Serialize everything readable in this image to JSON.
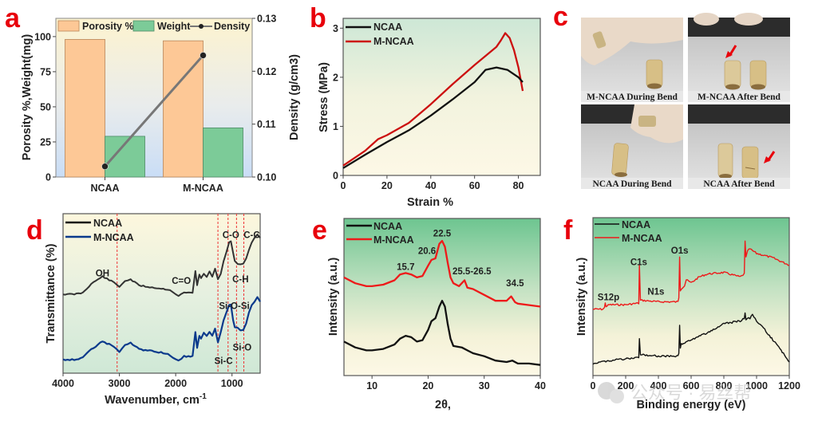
{
  "figure": {
    "panel_letters": [
      "a",
      "b",
      "c",
      "d",
      "e",
      "f"
    ],
    "colors": {
      "porosity": "#fdc896",
      "weight": "#7ccb98",
      "density_line": "#777777",
      "ncaa": "#111111",
      "m_ncaa_b": "#cc1010",
      "m_ncaa_d": "#0b3a8c",
      "m_ncaa_ef": "#ee1a1a",
      "guide": "#ee3333",
      "letter": "#e8000b"
    },
    "watermark": "公众号 · 易丝帮"
  },
  "chart_data": [
    {
      "panel": "a",
      "type": "bar",
      "categories": [
        "NCAA",
        "M-NCAA"
      ],
      "series": [
        {
          "name": "Porosity %",
          "axis": "left",
          "values": [
            98,
            97
          ]
        },
        {
          "name": "Weight",
          "axis": "left",
          "values": [
            29,
            35
          ]
        },
        {
          "name": "Density",
          "axis": "right",
          "kind": "line",
          "values": [
            0.102,
            0.123
          ]
        }
      ],
      "ylabel": "Porosity %,Weight(mg)",
      "ylabel_right": "Density (g/cm3)",
      "ylim": [
        0,
        113
      ],
      "yticks": [
        "0",
        "25",
        "50",
        "75",
        "100"
      ],
      "ytick_values": [
        0,
        25,
        50,
        75,
        100
      ],
      "ylim_right": [
        0.1,
        0.13
      ],
      "yticks_right": [
        "0.10",
        "0.11",
        "0.12",
        "0.13"
      ],
      "ytick_values_right": [
        0.1,
        0.11,
        0.12,
        0.13
      ],
      "legend": [
        "Porosity %",
        "Weight",
        "Density"
      ],
      "legend_position": "top"
    },
    {
      "panel": "b",
      "type": "line",
      "xlabel": "Strain %",
      "ylabel": "Stress (MPa)",
      "xlim": [
        0,
        90
      ],
      "ylim": [
        0,
        3.2
      ],
      "xticks": [
        "0",
        "20",
        "40",
        "60",
        "80"
      ],
      "xtick_values": [
        0,
        20,
        40,
        60,
        80
      ],
      "yticks": [
        "0",
        "1",
        "2",
        "3"
      ],
      "ytick_values": [
        0,
        1,
        2,
        3
      ],
      "legend_position": "top-left",
      "series": [
        {
          "name": "NCAA",
          "x": [
            0,
            10,
            20,
            30,
            40,
            50,
            60,
            65,
            70,
            75,
            80,
            82
          ],
          "y": [
            0.15,
            0.42,
            0.68,
            0.92,
            1.22,
            1.55,
            1.9,
            2.15,
            2.2,
            2.15,
            2.0,
            1.9
          ]
        },
        {
          "name": "M-NCAA",
          "x": [
            0,
            10,
            16,
            20,
            30,
            40,
            50,
            60,
            70,
            72,
            74,
            76,
            78,
            80,
            82
          ],
          "y": [
            0.2,
            0.5,
            0.74,
            0.82,
            1.07,
            1.45,
            1.86,
            2.25,
            2.62,
            2.75,
            2.9,
            2.8,
            2.55,
            2.2,
            1.72
          ]
        }
      ]
    },
    {
      "panel": "c",
      "type": "table",
      "photos": [
        {
          "caption": "M-NCAA During Bend",
          "arrow": false
        },
        {
          "caption": "M-NCAA  After Bend",
          "arrow": true
        },
        {
          "caption": "NCAA During Bend",
          "arrow": false
        },
        {
          "caption": "NCAA  After Bend",
          "arrow": true
        }
      ]
    },
    {
      "panel": "d",
      "type": "line",
      "xlabel": "Wavenumber, cm",
      "xlabel_sup": "-1",
      "ylabel": "Transmittance (%)",
      "xlim": [
        4000,
        500
      ],
      "xticks": [
        "4000",
        "3000",
        "2000",
        "1000"
      ],
      "xtick_values": [
        4000,
        3000,
        2000,
        1000
      ],
      "ylim": [
        0,
        100
      ],
      "guides": [
        3040,
        1250,
        1070,
        920,
        790
      ],
      "annotations": [
        {
          "text": "OH",
          "x": 3300,
          "y": 62
        },
        {
          "text": "C=O",
          "x": 1900,
          "y": 57
        },
        {
          "text": "C-O",
          "x": 1020,
          "y": 88
        },
        {
          "text": "C-C",
          "x": 650,
          "y": 88
        },
        {
          "text": "C-H",
          "x": 850,
          "y": 58
        },
        {
          "text": "Si-O-Si",
          "x": 960,
          "y": 40
        },
        {
          "text": "Si-O",
          "x": 820,
          "y": 12
        },
        {
          "text": "Si-C",
          "x": 1150,
          "y": 3
        }
      ],
      "legend_position": "top-left",
      "series": [
        {
          "name": "NCAA",
          "x": [
            4000,
            3800,
            3650,
            3500,
            3300,
            3100,
            3000,
            2900,
            2800,
            2650,
            2500,
            2300,
            2100,
            2000,
            1950,
            1850,
            1700,
            1650,
            1620,
            1580,
            1550,
            1500,
            1450,
            1400,
            1350,
            1300,
            1250,
            1200,
            1150,
            1100,
            1050,
            1020,
            980,
            950,
            900,
            850,
            800,
            750,
            700,
            650,
            600,
            550,
            500
          ],
          "y": [
            50,
            50,
            51,
            57,
            62,
            58,
            55,
            59,
            60,
            56,
            55,
            54,
            53,
            50,
            49,
            51,
            51,
            66,
            56,
            63,
            61,
            64,
            62,
            65,
            62,
            67,
            60,
            64,
            72,
            78,
            85,
            86,
            78,
            72,
            70,
            70,
            71,
            74,
            80,
            85,
            88,
            90,
            88
          ]
        },
        {
          "name": "M-NCAA",
          "x": [
            4000,
            3800,
            3650,
            3500,
            3300,
            3100,
            3000,
            2900,
            2800,
            2650,
            2500,
            2300,
            2100,
            2000,
            1950,
            1850,
            1700,
            1650,
            1620,
            1580,
            1550,
            1500,
            1450,
            1400,
            1350,
            1300,
            1250,
            1200,
            1150,
            1100,
            1050,
            1020,
            980,
            950,
            900,
            850,
            800,
            750,
            700,
            650,
            600,
            550,
            500
          ],
          "y": [
            6,
            6,
            7,
            13,
            18,
            15,
            11,
            16,
            17,
            13,
            12,
            11,
            9,
            6,
            5,
            8,
            8,
            24,
            14,
            22,
            20,
            24,
            22,
            25,
            22,
            27,
            18,
            24,
            32,
            38,
            43,
            43,
            33,
            28,
            27,
            26,
            26,
            30,
            38,
            43,
            45,
            48,
            45
          ]
        }
      ]
    },
    {
      "panel": "e",
      "type": "line",
      "xlabel": "2θ,",
      "ylabel": "Intensity (a.u.)",
      "xlim": [
        5,
        40
      ],
      "xticks": [
        "10",
        "20",
        "30",
        "40"
      ],
      "xtick_values": [
        10,
        20,
        30,
        40
      ],
      "ylim": [
        0,
        100
      ],
      "annotations": [
        {
          "text": "15.7",
          "x": 16.0,
          "y": 69
        },
        {
          "text": "20.6",
          "x": 19.8,
          "y": 80
        },
        {
          "text": "22.5",
          "x": 22.5,
          "y": 92
        },
        {
          "text": "25.5-26.5",
          "x": 27.8,
          "y": 66
        },
        {
          "text": "34.5",
          "x": 35.5,
          "y": 58
        }
      ],
      "legend_position": "top-left",
      "series": [
        {
          "name": "NCAA",
          "x": [
            5,
            7,
            9,
            10,
            12,
            14,
            15,
            16,
            17,
            18,
            19,
            20,
            20.6,
            21.3,
            22,
            22.5,
            23,
            23.5,
            24,
            24.5,
            26,
            27,
            28,
            30,
            32,
            34,
            35,
            36,
            38,
            40
          ],
          "y": [
            20,
            16,
            14,
            14,
            15,
            18,
            22,
            24,
            23,
            20,
            21,
            28,
            34,
            36,
            44,
            48,
            44,
            32,
            22,
            17,
            16,
            14,
            12,
            10,
            7,
            6,
            7,
            5,
            5,
            4
          ]
        },
        {
          "name": "M-NCAA",
          "x": [
            5,
            7,
            9,
            10,
            12,
            14,
            15,
            16,
            17,
            18,
            19,
            20,
            20.6,
            21.3,
            22,
            22.5,
            23,
            23.5,
            24,
            24.5,
            25.5,
            26,
            26.5,
            27,
            28,
            30,
            32,
            34,
            34.8,
            35.5,
            36,
            38,
            40
          ],
          "y": [
            64,
            60,
            58,
            58,
            59,
            62,
            66,
            67,
            66,
            64,
            65,
            72,
            76,
            77,
            87,
            89,
            85,
            74,
            64,
            60,
            58,
            60,
            62,
            57,
            56,
            52,
            48,
            48,
            51,
            47,
            46,
            45,
            44
          ]
        }
      ]
    },
    {
      "panel": "f",
      "type": "line",
      "xlabel": "Binding energy (eV)",
      "ylabel": "Intensity (a.u.)",
      "xlim": [
        0,
        1200
      ],
      "xticks": [
        "0",
        "200",
        "400",
        "600",
        "800",
        "1000",
        "1200"
      ],
      "xtick_values": [
        0,
        200,
        400,
        600,
        800,
        1000,
        1200
      ],
      "ylim": [
        0,
        100
      ],
      "annotations": [
        {
          "text": "S12p",
          "x": 95,
          "y": 48
        },
        {
          "text": "C1s",
          "x": 280,
          "y": 72
        },
        {
          "text": "N1s",
          "x": 385,
          "y": 52
        },
        {
          "text": "O1s",
          "x": 530,
          "y": 80
        },
        {
          "text": "",
          "x": 0,
          "y": 0
        }
      ],
      "legend_position": "top-left",
      "series": [
        {
          "name": "NCAA",
          "x": [
            0,
            100,
            200,
            270,
            280,
            284,
            290,
            300,
            400,
            520,
            525,
            530,
            534,
            540,
            560,
            600,
            700,
            800,
            850,
            900,
            925,
            930,
            935,
            960,
            975,
            1000,
            1050,
            1100,
            1150,
            1200
          ],
          "y": [
            5,
            7,
            8,
            9,
            9,
            22,
            11,
            11,
            10,
            10,
            12,
            31,
            16,
            18,
            19,
            21,
            26,
            32,
            33,
            34,
            36,
            39,
            35,
            36,
            38,
            34,
            28,
            21,
            14,
            6
          ]
        },
        {
          "name": "M-NCAA",
          "x": [
            0,
            60,
            70,
            75,
            80,
            100,
            200,
            270,
            280,
            284,
            290,
            300,
            400,
            520,
            525,
            530,
            534,
            540,
            560,
            570,
            600,
            650,
            700,
            800,
            900,
            925,
            930,
            935,
            945,
            960,
            1000,
            1100,
            1200
          ],
          "y": [
            42,
            42,
            43,
            46,
            44,
            45,
            45,
            46,
            46,
            72,
            48,
            48,
            47,
            47,
            50,
            78,
            55,
            56,
            58,
            62,
            60,
            64,
            66,
            67,
            64,
            66,
            88,
            77,
            82,
            83,
            80,
            77,
            72
          ]
        }
      ]
    }
  ]
}
